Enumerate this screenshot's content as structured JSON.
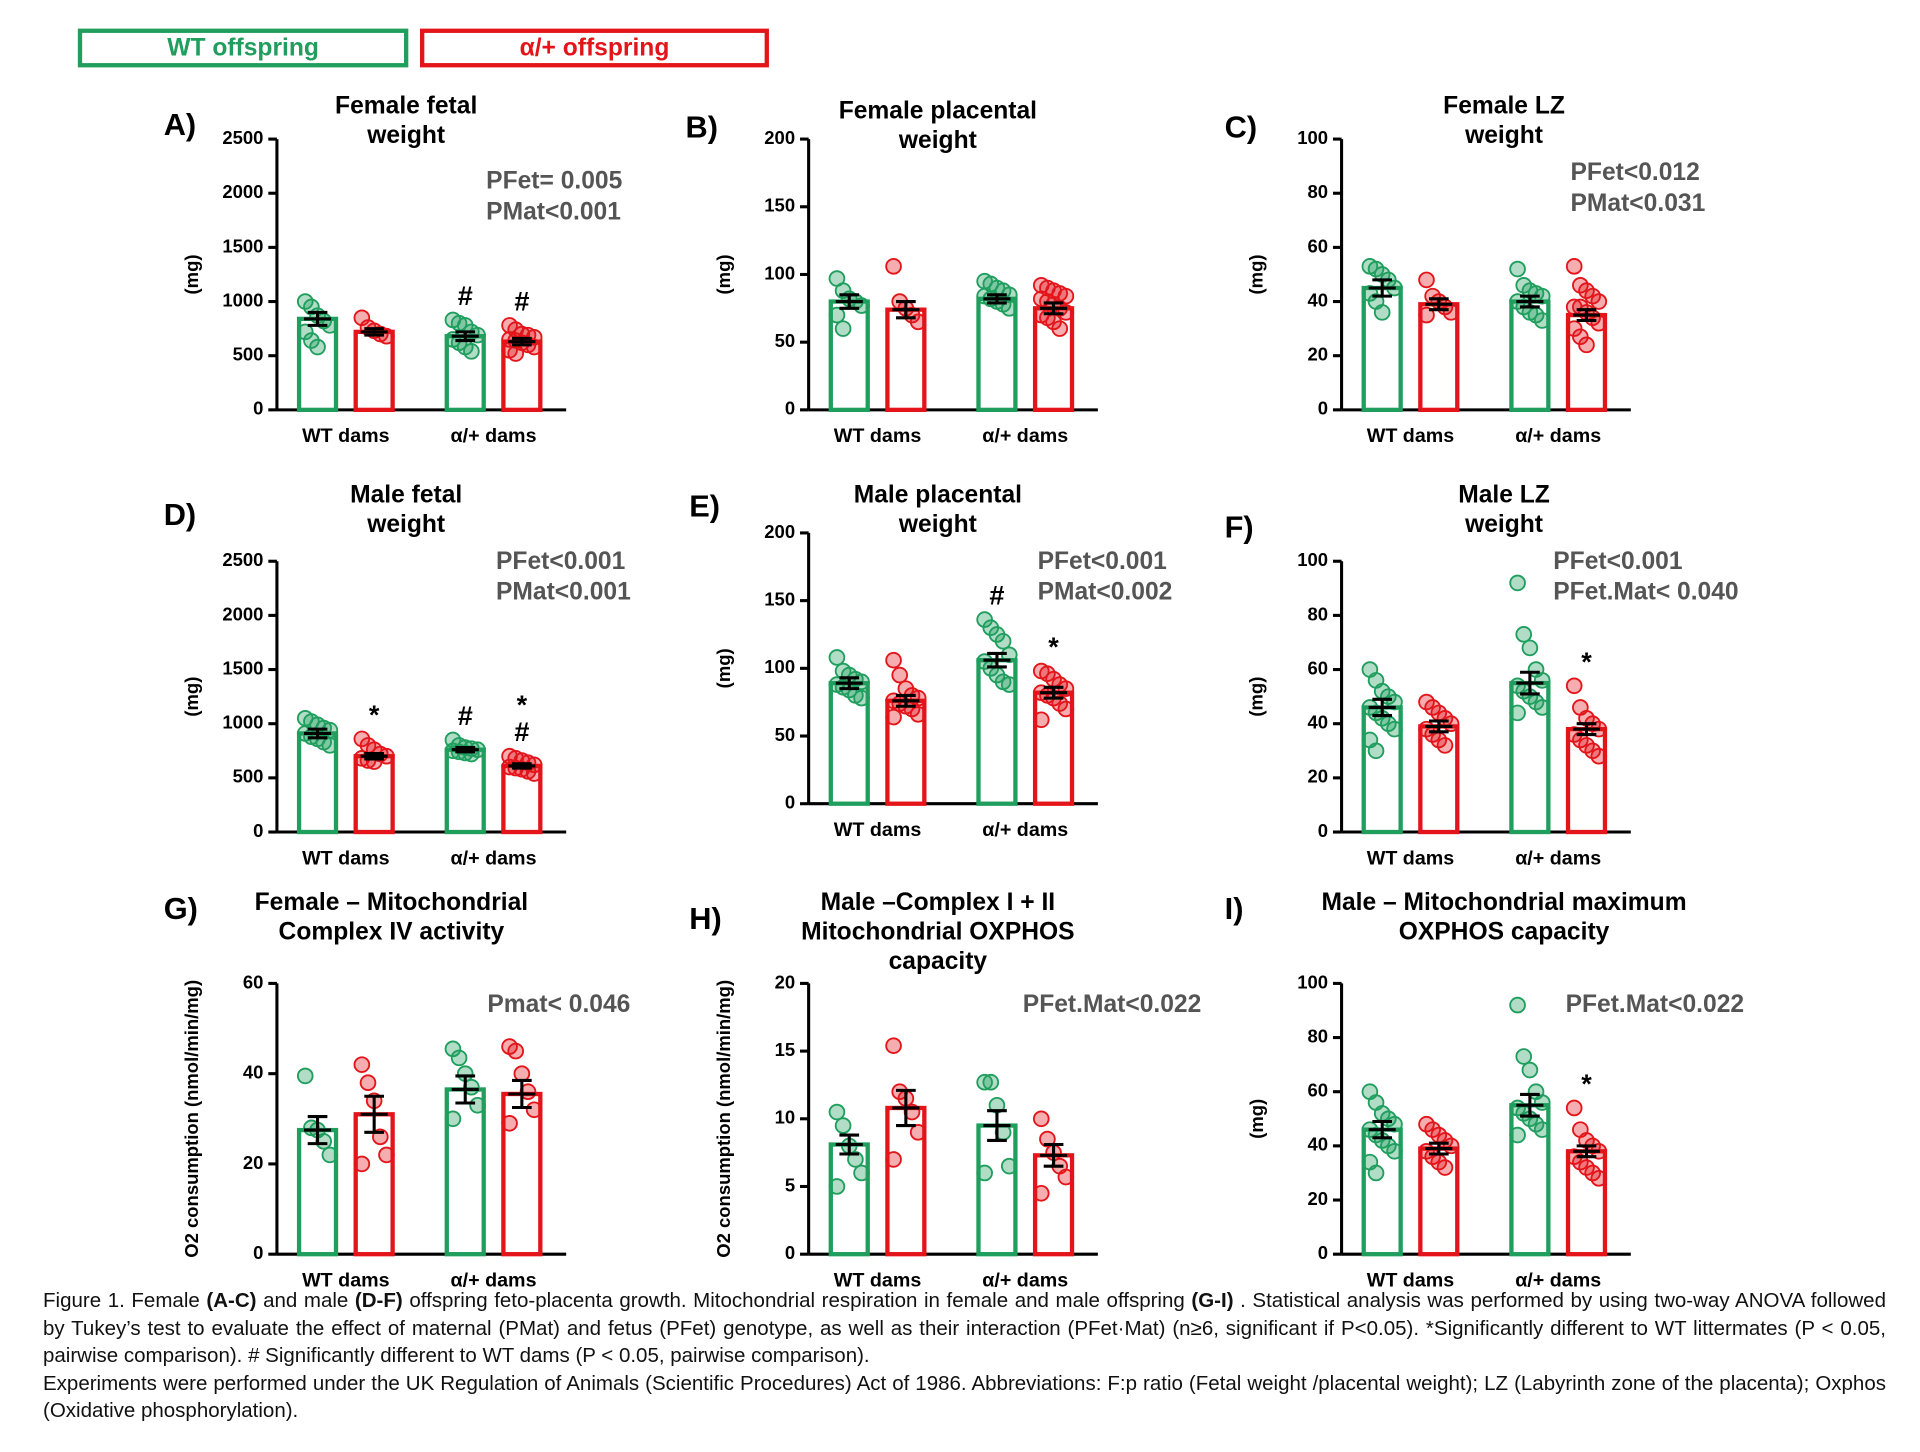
{
  "legend": [
    {
      "name": "WT offspring",
      "color": "#1f9e5e"
    },
    {
      "name": "α/+  offspring",
      "color": "#e3151a"
    }
  ],
  "chart_data": [
    {
      "type": "bar",
      "panel": "A)",
      "title": [
        "Female fetal",
        "weight"
      ],
      "ylabel": "(mg)",
      "categories": [
        "WT dams",
        "α/+ dams"
      ],
      "ylim": [
        0,
        2500
      ],
      "yticks": [
        0,
        500,
        1000,
        1500,
        2000,
        2500
      ],
      "annotations": [
        "PFet= 0.005",
        "PMat<0.001"
      ],
      "series": [
        {
          "color": "#1f9e5e",
          "values": [
            840,
            680
          ],
          "errors": [
            60,
            40
          ],
          "marks": [
            null,
            [
              "#"
            ]
          ],
          "points": [
            [
              1000,
              950,
              870,
              820,
              780,
              720,
              640,
              580
            ],
            [
              830,
              800,
              780,
              720,
              690,
              650,
              620,
              580,
              540
            ]
          ]
        },
        {
          "color": "#e3151a",
          "values": [
            720,
            630
          ],
          "errors": [
            30,
            30
          ],
          "marks": [
            null,
            [
              "#"
            ]
          ],
          "points": [
            [
              850,
              760,
              730,
              700,
              680
            ],
            [
              780,
              740,
              700,
              690,
              670,
              650,
              640,
              620,
              600,
              580,
              550,
              520
            ]
          ]
        }
      ]
    },
    {
      "type": "bar",
      "panel": "B)",
      "title": [
        "Female placental",
        "weight"
      ],
      "ylabel": "(mg)",
      "categories": [
        "WT dams",
        "α/+ dams"
      ],
      "ylim": [
        0,
        200
      ],
      "yticks": [
        0,
        50,
        100,
        150,
        200
      ],
      "annotations": [],
      "series": [
        {
          "color": "#1f9e5e",
          "values": [
            80,
            82
          ],
          "errors": [
            5,
            3
          ],
          "marks": [
            null,
            null
          ],
          "points": [
            [
              97,
              88,
              82,
              80,
              77,
              70,
              60
            ],
            [
              95,
              93,
              90,
              88,
              85,
              84,
              82,
              80,
              78,
              75
            ]
          ]
        },
        {
          "color": "#e3151a",
          "values": [
            74,
            75
          ],
          "errors": [
            6,
            4
          ],
          "marks": [
            null,
            null
          ],
          "points": [
            [
              106,
              80,
              75,
              70,
              65
            ],
            [
              92,
              90,
              88,
              86,
              84,
              82,
              80,
              78,
              75,
              72,
              70,
              68,
              65,
              60
            ]
          ]
        }
      ]
    },
    {
      "type": "bar",
      "panel": "C)",
      "title": [
        "Female LZ",
        "weight"
      ],
      "ylabel": "(mg)",
      "categories": [
        "WT dams",
        "α/+ dams"
      ],
      "ylim": [
        0,
        100
      ],
      "yticks": [
        0,
        20,
        40,
        60,
        80,
        100
      ],
      "annotations": [
        "PFet<0.012",
        "PMat<0.031"
      ],
      "series": [
        {
          "color": "#1f9e5e",
          "values": [
            45,
            40
          ],
          "errors": [
            3,
            2
          ],
          "marks": [
            null,
            null
          ],
          "points": [
            [
              53,
              52,
              50,
              48,
              45,
              43,
              40,
              36
            ],
            [
              52,
              46,
              44,
              43,
              42,
              40,
              38,
              36,
              35,
              33
            ]
          ]
        },
        {
          "color": "#e3151a",
          "values": [
            39,
            35
          ],
          "errors": [
            2,
            2
          ],
          "marks": [
            null,
            null
          ],
          "points": [
            [
              48,
              42,
              40,
              38,
              36,
              35
            ],
            [
              53,
              46,
              44,
              42,
              40,
              38,
              38,
              36,
              34,
              32,
              30,
              27,
              24
            ]
          ]
        }
      ]
    },
    {
      "type": "bar",
      "panel": "D)",
      "title": [
        "Male fetal",
        "weight"
      ],
      "ylabel": "(mg)",
      "categories": [
        "WT dams",
        "α/+ dams"
      ],
      "ylim": [
        0,
        2500
      ],
      "yticks": [
        0,
        500,
        1000,
        1500,
        2000,
        2500
      ],
      "annotations": [
        "PFet<0.001",
        "PMat<0.001"
      ],
      "series": [
        {
          "color": "#1f9e5e",
          "values": [
            910,
            760
          ],
          "errors": [
            40,
            20
          ],
          "marks": [
            null,
            [
              "#"
            ]
          ],
          "points": [
            [
              1050,
              1020,
              990,
              960,
              940,
              910,
              880,
              860,
              830,
              800
            ],
            [
              850,
              800,
              780,
              770,
              760,
              750,
              740,
              730,
              720
            ]
          ]
        },
        {
          "color": "#e3151a",
          "values": [
            700,
            610
          ],
          "errors": [
            25,
            20
          ],
          "marks": [
            [
              "*"
            ],
            [
              "*",
              "#"
            ]
          ],
          "points": [
            [
              860,
              800,
              760,
              720,
              700,
              680,
              660,
              650
            ],
            [
              700,
              680,
              660,
              640,
              620,
              600,
              590,
              580,
              560,
              540
            ]
          ]
        }
      ]
    },
    {
      "type": "bar",
      "panel": "E)",
      "title": [
        "Male placental",
        "weight"
      ],
      "ylabel": "(mg)",
      "categories": [
        "WT dams",
        "α/+ dams"
      ],
      "ylim": [
        0,
        200
      ],
      "yticks": [
        0,
        50,
        100,
        150,
        200
      ],
      "annotations": [
        "PFet<0.001",
        "PMat<0.002"
      ],
      "series": [
        {
          "color": "#1f9e5e",
          "values": [
            89,
            106
          ],
          "errors": [
            4,
            5
          ],
          "marks": [
            null,
            [
              "#"
            ]
          ],
          "points": [
            [
              108,
              98,
              95,
              92,
              90,
              88,
              86,
              84,
              80,
              78
            ],
            [
              136,
              130,
              125,
              120,
              110,
              105,
              100,
              95,
              90,
              88
            ]
          ]
        },
        {
          "color": "#e3151a",
          "values": [
            76,
            82
          ],
          "errors": [
            4,
            4
          ],
          "marks": [
            null,
            [
              "*"
            ]
          ],
          "points": [
            [
              106,
              95,
              85,
              80,
              78,
              76,
              74,
              72,
              70,
              66,
              64
            ],
            [
              98,
              96,
              92,
              88,
              85,
              82,
              80,
              78,
              74,
              70,
              62
            ]
          ]
        }
      ]
    },
    {
      "type": "bar",
      "panel": "F)",
      "title": [
        "Male LZ",
        "weight"
      ],
      "ylabel": "(mg)",
      "categories": [
        "WT dams",
        "α/+ dams"
      ],
      "ylim": [
        0,
        100
      ],
      "yticks": [
        0,
        20,
        40,
        60,
        80,
        100
      ],
      "annotations": [
        "PFet<0.001",
        "PFet.Mat< 0.040"
      ],
      "series": [
        {
          "color": "#1f9e5e",
          "values": [
            46,
            55
          ],
          "errors": [
            3,
            4
          ],
          "marks": [
            null,
            null
          ],
          "points": [
            [
              60,
              56,
              52,
              50,
              48,
              46,
              44,
              42,
              40,
              38,
              34,
              30
            ],
            [
              92,
              73,
              68,
              60,
              56,
              54,
              52,
              50,
              48,
              46,
              44
            ]
          ]
        },
        {
          "color": "#e3151a",
          "values": [
            39,
            38
          ],
          "errors": [
            2,
            2
          ],
          "marks": [
            null,
            [
              "*"
            ]
          ],
          "points": [
            [
              48,
              46,
              44,
              42,
              40,
              38,
              36,
              34,
              32
            ],
            [
              54,
              46,
              42,
              40,
              38,
              36,
              34,
              32,
              30,
              28
            ]
          ]
        }
      ]
    },
    {
      "type": "bar",
      "panel": "G)",
      "title": [
        "Female – Mitochondrial",
        "Complex IV activity"
      ],
      "ylabel": "O2 consumption (nmol/min/mg)",
      "categories": [
        "WT dams",
        "α/+ dams"
      ],
      "ylim": [
        0,
        60
      ],
      "yticks": [
        0,
        20,
        40,
        60
      ],
      "annotations": [
        "Pmat< 0.046"
      ],
      "series": [
        {
          "color": "#1f9e5e",
          "values": [
            27.5,
            36.5
          ],
          "errors": [
            3,
            3
          ],
          "marks": [
            null,
            null
          ],
          "points": [
            [
              39.5,
              28,
              27.5,
              25,
              22
            ],
            [
              45.5,
              43.5,
              40,
              37,
              33,
              30
            ]
          ]
        },
        {
          "color": "#e3151a",
          "values": [
            31,
            35.5
          ],
          "errors": [
            4,
            3
          ],
          "marks": [
            null,
            null
          ],
          "points": [
            [
              42,
              38,
              34,
              26,
              22,
              20
            ],
            [
              46,
              45,
              40,
              36,
              32,
              29
            ]
          ]
        }
      ]
    },
    {
      "type": "bar",
      "panel": "H)",
      "title": [
        "Male –Complex I + II",
        "Mitochondrial OXPHOS",
        "capacity"
      ],
      "ylabel": "O2 consumption (nmol/min/mg)",
      "categories": [
        "WT dams",
        "α/+ dams"
      ],
      "ylim": [
        0,
        20
      ],
      "yticks": [
        0,
        5,
        10,
        15,
        20
      ],
      "annotations": [
        "PFet.Mat<0.022"
      ],
      "series": [
        {
          "color": "#1f9e5e",
          "values": [
            8.1,
            9.5
          ],
          "errors": [
            0.7,
            1.1
          ],
          "marks": [
            null,
            null
          ],
          "points": [
            [
              10.5,
              9.5,
              8,
              7,
              6,
              5
            ],
            [
              12.7,
              12.7,
              11,
              9,
              6.5,
              6
            ]
          ]
        },
        {
          "color": "#e3151a",
          "values": [
            10.8,
            7.3
          ],
          "errors": [
            1.3,
            0.8
          ],
          "marks": [
            null,
            null
          ],
          "points": [
            [
              15.4,
              12,
              11.5,
              10.5,
              9,
              7
            ],
            [
              10,
              8.5,
              7.5,
              6.5,
              5.7,
              4.5
            ]
          ]
        }
      ]
    },
    {
      "type": "bar",
      "panel": "I)",
      "title": [
        "Male – Mitochondrial maximum",
        "OXPHOS capacity"
      ],
      "ylabel": "(mg)",
      "categories": [
        "WT dams",
        "α/+ dams"
      ],
      "ylim": [
        0,
        100
      ],
      "yticks": [
        0,
        20,
        40,
        60,
        80,
        100
      ],
      "annotations": [
        "PFet.Mat<0.022"
      ],
      "series": [
        {
          "color": "#1f9e5e",
          "values": [
            46,
            55
          ],
          "errors": [
            3,
            4
          ],
          "marks": [
            null,
            null
          ],
          "points": [
            [
              60,
              56,
              52,
              50,
              48,
              46,
              44,
              42,
              40,
              38,
              34,
              30
            ],
            [
              92,
              73,
              68,
              60,
              56,
              54,
              52,
              50,
              48,
              46,
              44
            ]
          ]
        },
        {
          "color": "#e3151a",
          "values": [
            39,
            38
          ],
          "errors": [
            2,
            2
          ],
          "marks": [
            null,
            [
              "*"
            ]
          ],
          "points": [
            [
              48,
              46,
              44,
              42,
              40,
              38,
              36,
              34,
              32
            ],
            [
              54,
              46,
              42,
              40,
              38,
              36,
              34,
              32,
              30,
              28
            ]
          ]
        }
      ]
    }
  ],
  "caption": [
    [
      {
        "text": "Figure 1. Female ",
        "bold": false
      },
      {
        "text": "(A-C)",
        "bold": true
      },
      {
        "text": " and male ",
        "bold": false
      },
      {
        "text": "(D-F)",
        "bold": true
      },
      {
        "text": " offspring feto-placenta growth. Mitochondrial respiration in female and male offspring ",
        "bold": false
      },
      {
        "text": "(G-I)",
        "bold": true
      },
      {
        "text": " . Statistical analysis was performed by using two-way ANOVA followed by Tukey’s test to evaluate the effect of maternal (PMat) and fetus (PFet) genotype, as well as their interaction (PFet·Mat) (n≥6, significant if P<0.05). *Significantly different to WT littermates (P < 0.05, pairwise comparison). # Significantly different to WT dams (P < 0.05, pairwise comparison).",
        "bold": false
      }
    ],
    [
      {
        "text": "Experiments were performed under the UK Regulation of Animals (Scientific Procedures) Act of 1986. Abbreviations: F:p ratio (Fetal weight /placental weight); LZ (Labyrinth zone of the placenta); Oxphos (Oxidative phosphorylation).",
        "bold": false
      }
    ]
  ]
}
